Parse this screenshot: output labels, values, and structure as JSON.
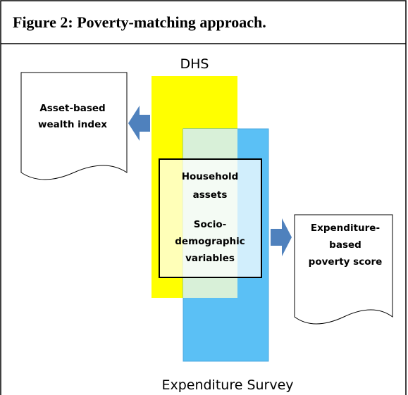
{
  "header": {
    "title": "Figure 2: Poverty-matching approach."
  },
  "diagram": {
    "top_label": "DHS",
    "bottom_label": "Expenditure Survey",
    "center_lines": [
      "Household",
      "assets",
      "Socio-",
      "demographic",
      "variables"
    ],
    "left_doc_lines": [
      "Asset-based",
      "wealth index"
    ],
    "right_doc_lines": [
      "Expenditure-",
      "based",
      "poverty score"
    ]
  }
}
